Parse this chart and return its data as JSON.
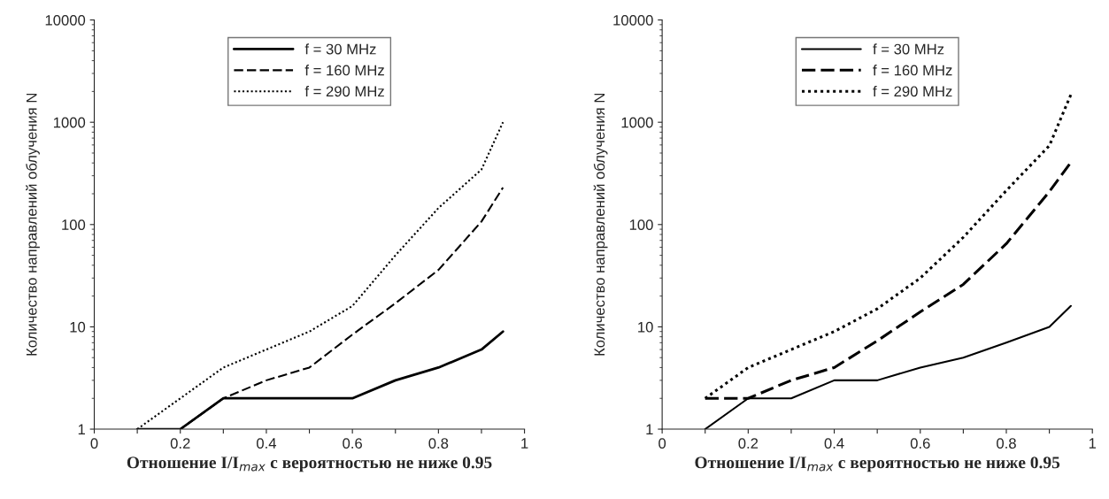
{
  "chart_data": [
    {
      "type": "line",
      "xlabel": "Отношение I/I$_{max}$ с вероятностью не ниже 0.95",
      "ylabel": "Количество направлений облучения N",
      "log": "y",
      "legend": "top",
      "grid": false,
      "x": [
        0.1,
        0.2,
        0.3,
        0.4,
        0.5,
        0.6,
        0.7,
        0.8,
        0.9,
        0.95
      ],
      "xlim": [
        0,
        1
      ],
      "ylim": [
        1,
        10000
      ],
      "xticks": [
        0,
        {
          "value": 0.1,
          "label": null
        },
        0.2,
        {
          "value": 0.3,
          "label": null
        },
        0.4,
        {
          "value": 0.5,
          "label": null
        },
        0.6,
        {
          "value": 0.7,
          "label": null
        },
        0.8,
        {
          "value": 0.9,
          "label": null
        },
        1
      ],
      "yticks": [
        1,
        10,
        100,
        1000,
        10000
      ],
      "series": [
        {
          "name": "f = 30 MHz",
          "color": "#000000",
          "line_style": "solid",
          "values": [
            1,
            1,
            2,
            2,
            2,
            2,
            3,
            4,
            6,
            9
          ]
        },
        {
          "name": "f = 160 MHz",
          "color": "#000000",
          "line_style": "dashed",
          "values": [
            1,
            1,
            2,
            3,
            4,
            8.4,
            17,
            36,
            107,
            230
          ]
        },
        {
          "name": "f = 290 MHz",
          "color": "#000000",
          "line_style": "dotted",
          "values": [
            1,
            2,
            4,
            6,
            9,
            16,
            50,
            145,
            345,
            1000
          ]
        }
      ]
    },
    {
      "type": "line",
      "xlabel": "Отношение I/I$_{max}$ с вероятностью не ниже 0.95",
      "ylabel": "Количество направлений облучения N",
      "log": "y",
      "legend": "top",
      "grid": false,
      "x": [
        0.1,
        0.2,
        0.3,
        0.4,
        0.5,
        0.6,
        0.7,
        0.8,
        0.9,
        0.95
      ],
      "xlim": [
        0,
        1
      ],
      "ylim": [
        1,
        10000
      ],
      "xticks": [
        0,
        {
          "value": 0.1,
          "label": null
        },
        0.2,
        {
          "value": 0.3,
          "label": null
        },
        0.4,
        {
          "value": 0.5,
          "label": null
        },
        0.6,
        {
          "value": 0.7,
          "label": null
        },
        0.8,
        {
          "value": 0.9,
          "label": null
        },
        1
      ],
      "yticks": [
        1,
        10,
        100,
        1000,
        10000
      ],
      "series": [
        {
          "name": "f = 30 MHz",
          "color": "#000000",
          "line_style": "solid",
          "values": [
            1,
            2,
            2,
            3,
            3,
            4,
            5,
            7,
            10,
            16
          ]
        },
        {
          "name": "f = 160 MHz",
          "color": "#000000",
          "line_style": "dashed",
          "values": [
            2,
            2,
            3,
            4,
            7.3,
            14,
            26,
            65,
            210,
            405
          ]
        },
        {
          "name": "f = 290 MHz",
          "color": "#000000",
          "line_style": "dotted",
          "values": [
            2,
            4,
            6,
            9,
            15,
            30,
            75,
            215,
            590,
            1860
          ]
        }
      ]
    }
  ]
}
